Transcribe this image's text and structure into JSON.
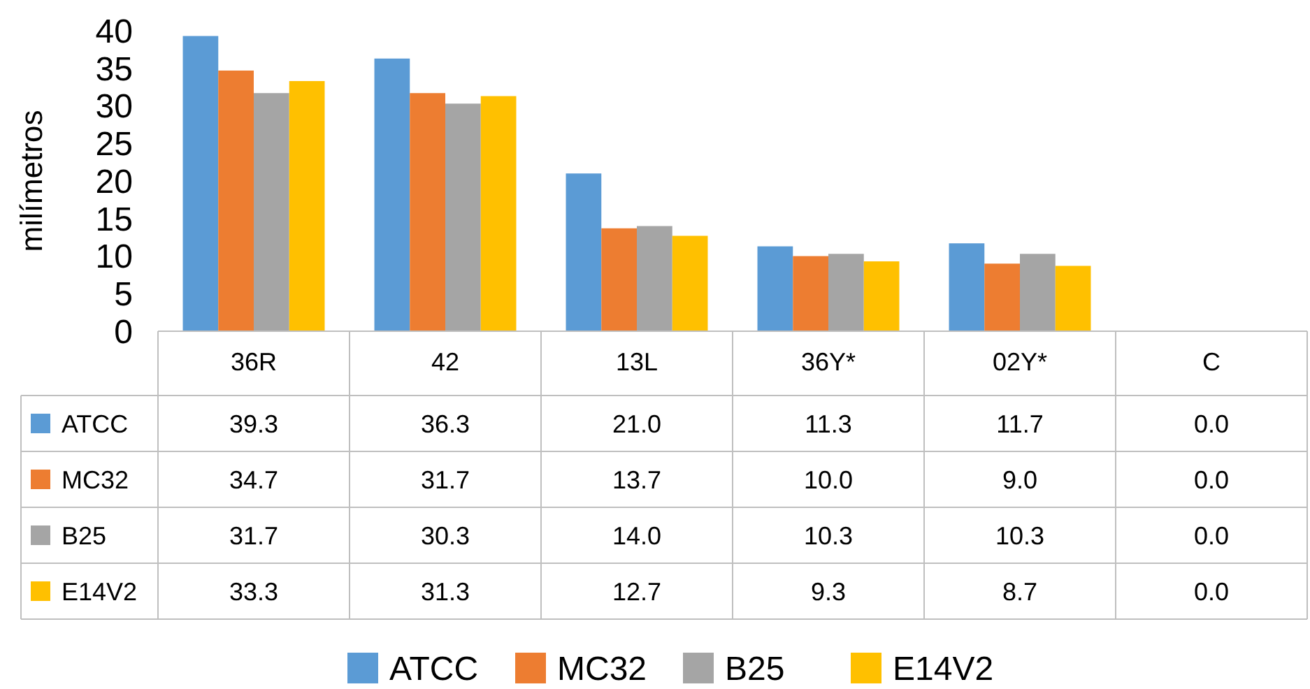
{
  "chart_data": {
    "type": "bar",
    "ylabel": "milímetros",
    "categories": [
      "36R",
      "42",
      "13L",
      "36Y*",
      "02Y*",
      "C"
    ],
    "series": [
      {
        "name": "ATCC",
        "color": "#5b9bd5",
        "values": [
          39.3,
          36.3,
          21.0,
          11.3,
          11.7,
          0.0
        ],
        "value_labels": [
          "39.3",
          "36.3",
          "21.0",
          "11.3",
          "11.7",
          "0.0"
        ]
      },
      {
        "name": "MC32",
        "color": "#ed7d31",
        "values": [
          34.7,
          31.7,
          13.7,
          10.0,
          9.0,
          0.0
        ],
        "value_labels": [
          "34.7",
          "31.7",
          "13.7",
          "10.0",
          "9.0",
          "0.0"
        ]
      },
      {
        "name": "B25",
        "color": "#a5a5a5",
        "values": [
          31.7,
          30.3,
          14.0,
          10.3,
          10.3,
          0.0
        ],
        "value_labels": [
          "31.7",
          "30.3",
          "14.0",
          "10.3",
          "10.3",
          "0.0"
        ]
      },
      {
        "name": "E14V2",
        "color": "#ffc000",
        "values": [
          33.3,
          31.3,
          12.7,
          9.3,
          8.7,
          0.0
        ],
        "value_labels": [
          "33.3",
          "31.3",
          "12.7",
          "9.3",
          "8.7",
          "0.0"
        ]
      }
    ],
    "ylim": [
      0,
      40
    ],
    "yticks": [
      0,
      5,
      10,
      15,
      20,
      25,
      30,
      35,
      40
    ],
    "legend": "bottom"
  }
}
